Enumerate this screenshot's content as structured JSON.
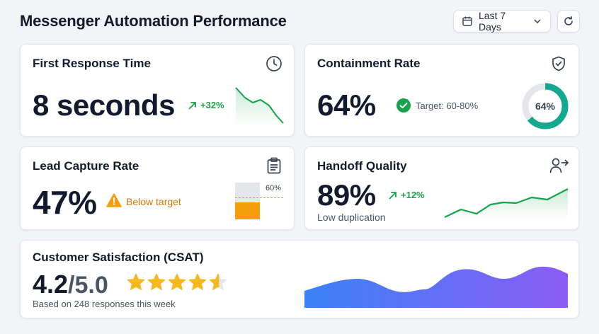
{
  "header": {
    "title": "Messenger Automation Performance",
    "date_range": "Last 7 Days"
  },
  "colors": {
    "green": "#16a34a",
    "teal": "#14a88f",
    "amber": "#f59e0b",
    "star": "#f5b91d",
    "wave_start": "#3b82f6",
    "wave_end": "#8b5cf6"
  },
  "cards": {
    "first_response": {
      "title": "First Response Time",
      "value": "8 seconds",
      "trend": "+32%",
      "icon": "clock-icon"
    },
    "containment": {
      "title": "Containment Rate",
      "value": "64%",
      "target": "Target: 60-80%",
      "donut_label": "64%",
      "donut_fraction": 0.64,
      "icon": "shield-check-icon"
    },
    "lead_capture": {
      "title": "Lead Capture Rate",
      "value": "47%",
      "warning": "Below target",
      "target_label": "60%",
      "fill_fraction": 0.47,
      "target_fraction": 0.6,
      "icon": "clipboard-icon"
    },
    "handoff": {
      "title": "Handoff Quality",
      "value": "89%",
      "trend": "+12%",
      "subtitle": "Low duplication",
      "icon": "user-handoff-icon"
    },
    "csat": {
      "title": "Customer Satisfaction (CSAT)",
      "score": "4.2",
      "out_of": "/5.0",
      "rating": 4.2,
      "subtitle": "Based on 248 responses this week"
    }
  }
}
